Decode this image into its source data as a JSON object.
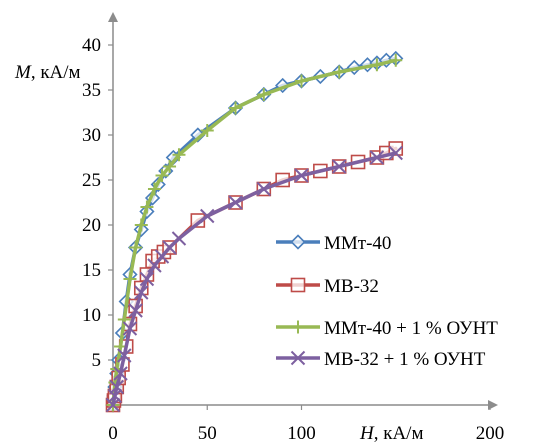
{
  "chart_data": {
    "type": "line",
    "xlabel_italic": "H",
    "xlabel_unit": ", кА/м",
    "ylabel_italic": "M",
    "ylabel_unit": ", кА/м",
    "xlim": [
      0,
      200
    ],
    "ylim": [
      0,
      40
    ],
    "x_ticks": [
      0,
      50,
      100,
      200
    ],
    "y_ticks": [
      5,
      10,
      15,
      20,
      25,
      30,
      35,
      40
    ],
    "grid": false,
    "legend_position": "right",
    "series": [
      {
        "name": "ММт-40",
        "color": "#4a7ebb",
        "marker": "diamond",
        "x": [
          0,
          0.5,
          1,
          2,
          3,
          5,
          7,
          9,
          12,
          15,
          18,
          21,
          24,
          28,
          32,
          45,
          65,
          80,
          90,
          100,
          110,
          120,
          128,
          135,
          140,
          145,
          150
        ],
        "y": [
          0,
          1,
          2,
          3.5,
          5,
          8,
          11.5,
          14.5,
          17.5,
          19.5,
          21.5,
          23,
          24.5,
          26,
          27.5,
          30,
          33,
          34.5,
          35.5,
          36,
          36.5,
          37,
          37.5,
          37.8,
          38,
          38.3,
          38.5
        ]
      },
      {
        "name": "МВ-32",
        "color": "#be4b48",
        "marker": "square",
        "x": [
          0,
          0.5,
          1,
          2,
          3,
          5,
          7,
          9,
          12,
          15,
          18,
          21,
          24,
          27,
          30,
          45,
          65,
          80,
          90,
          100,
          110,
          120,
          130,
          140,
          145,
          150
        ],
        "y": [
          0,
          0.5,
          1,
          2,
          3,
          4.5,
          6.5,
          9,
          11,
          13,
          14.5,
          16,
          16.5,
          17,
          17.5,
          20.5,
          22.5,
          24,
          25,
          25.5,
          26,
          26.5,
          27,
          27.5,
          28,
          28.5
        ]
      },
      {
        "name": "ММт-40 + 1 % ОУНТ",
        "color": "#98b954",
        "marker": "plus",
        "x": [
          0,
          1,
          2,
          4,
          6,
          9,
          12,
          15,
          18,
          22,
          26,
          30,
          35,
          50,
          65,
          80,
          100,
          120,
          140,
          150
        ],
        "y": [
          0,
          2.5,
          4,
          6.5,
          9.5,
          14,
          17.5,
          20,
          22,
          24,
          25.5,
          26.5,
          27.8,
          30.5,
          33,
          34.5,
          36,
          37,
          37.8,
          38.3
        ]
      },
      {
        "name": "МВ-32 + 1 % ОУНТ",
        "color": "#7d60a0",
        "marker": "x",
        "x": [
          0,
          1,
          2,
          4,
          6,
          9,
          12,
          15,
          18,
          22,
          26,
          30,
          35,
          50,
          65,
          80,
          100,
          120,
          140,
          150
        ],
        "y": [
          0,
          1,
          2,
          3.5,
          5.5,
          8.5,
          10.5,
          12.5,
          14,
          15.5,
          16.5,
          17.5,
          18.5,
          21,
          22.5,
          24,
          25.5,
          26.5,
          27.5,
          28
        ]
      }
    ]
  }
}
